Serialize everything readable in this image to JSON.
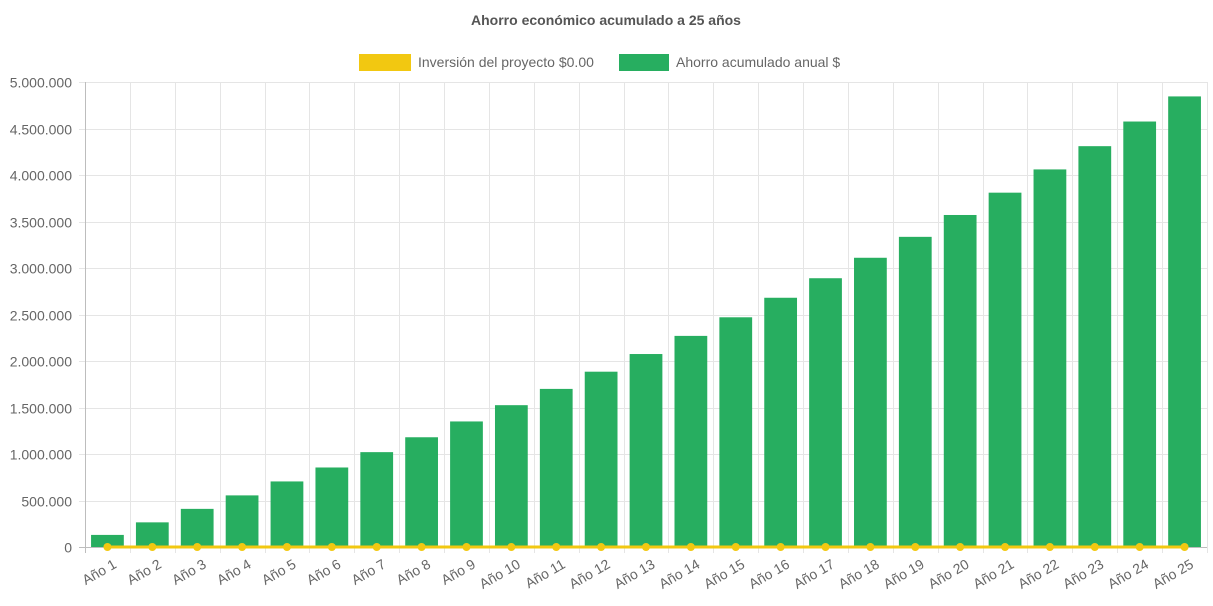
{
  "chart_data": {
    "type": "bar",
    "title": "Ahorro económico acumulado a 25 años",
    "categories": [
      "Año 1",
      "Año 2",
      "Año 3",
      "Año 4",
      "Año 5",
      "Año 6",
      "Año 7",
      "Año 8",
      "Año 9",
      "Año 10",
      "Año 11",
      "Año 12",
      "Año 13",
      "Año 14",
      "Año 15",
      "Año 16",
      "Año 17",
      "Año 18",
      "Año 19",
      "Año 20",
      "Año 21",
      "Año 22",
      "Año 23",
      "Año 24",
      "Año 25"
    ],
    "series": [
      {
        "name": "Inversión del proyecto $0.00",
        "type": "line",
        "color": "#f2c811",
        "values": [
          0,
          0,
          0,
          0,
          0,
          0,
          0,
          0,
          0,
          0,
          0,
          0,
          0,
          0,
          0,
          0,
          0,
          0,
          0,
          0,
          0,
          0,
          0,
          0,
          0
        ]
      },
      {
        "name": "Ahorro acumulado anual $",
        "type": "bar",
        "color": "#27ae60",
        "values": [
          130000,
          265000,
          410000,
          555000,
          705000,
          855000,
          1020000,
          1180000,
          1350000,
          1525000,
          1700000,
          1885000,
          2075000,
          2270000,
          2470000,
          2680000,
          2890000,
          3110000,
          3335000,
          3570000,
          3810000,
          4060000,
          4310000,
          4575000,
          4845000
        ]
      }
    ],
    "ylim": [
      0,
      5000000
    ],
    "yticks": [
      "0",
      "500.000",
      "1.000.000",
      "1.500.000",
      "2.000.000",
      "2.500.000",
      "3.000.000",
      "3.500.000",
      "4.000.000",
      "4.500.000",
      "5.000.000"
    ],
    "ytick_values": [
      0,
      500000,
      1000000,
      1500000,
      2000000,
      2500000,
      3000000,
      3500000,
      4000000,
      4500000,
      5000000
    ],
    "grid": true,
    "legend_position": "top"
  }
}
